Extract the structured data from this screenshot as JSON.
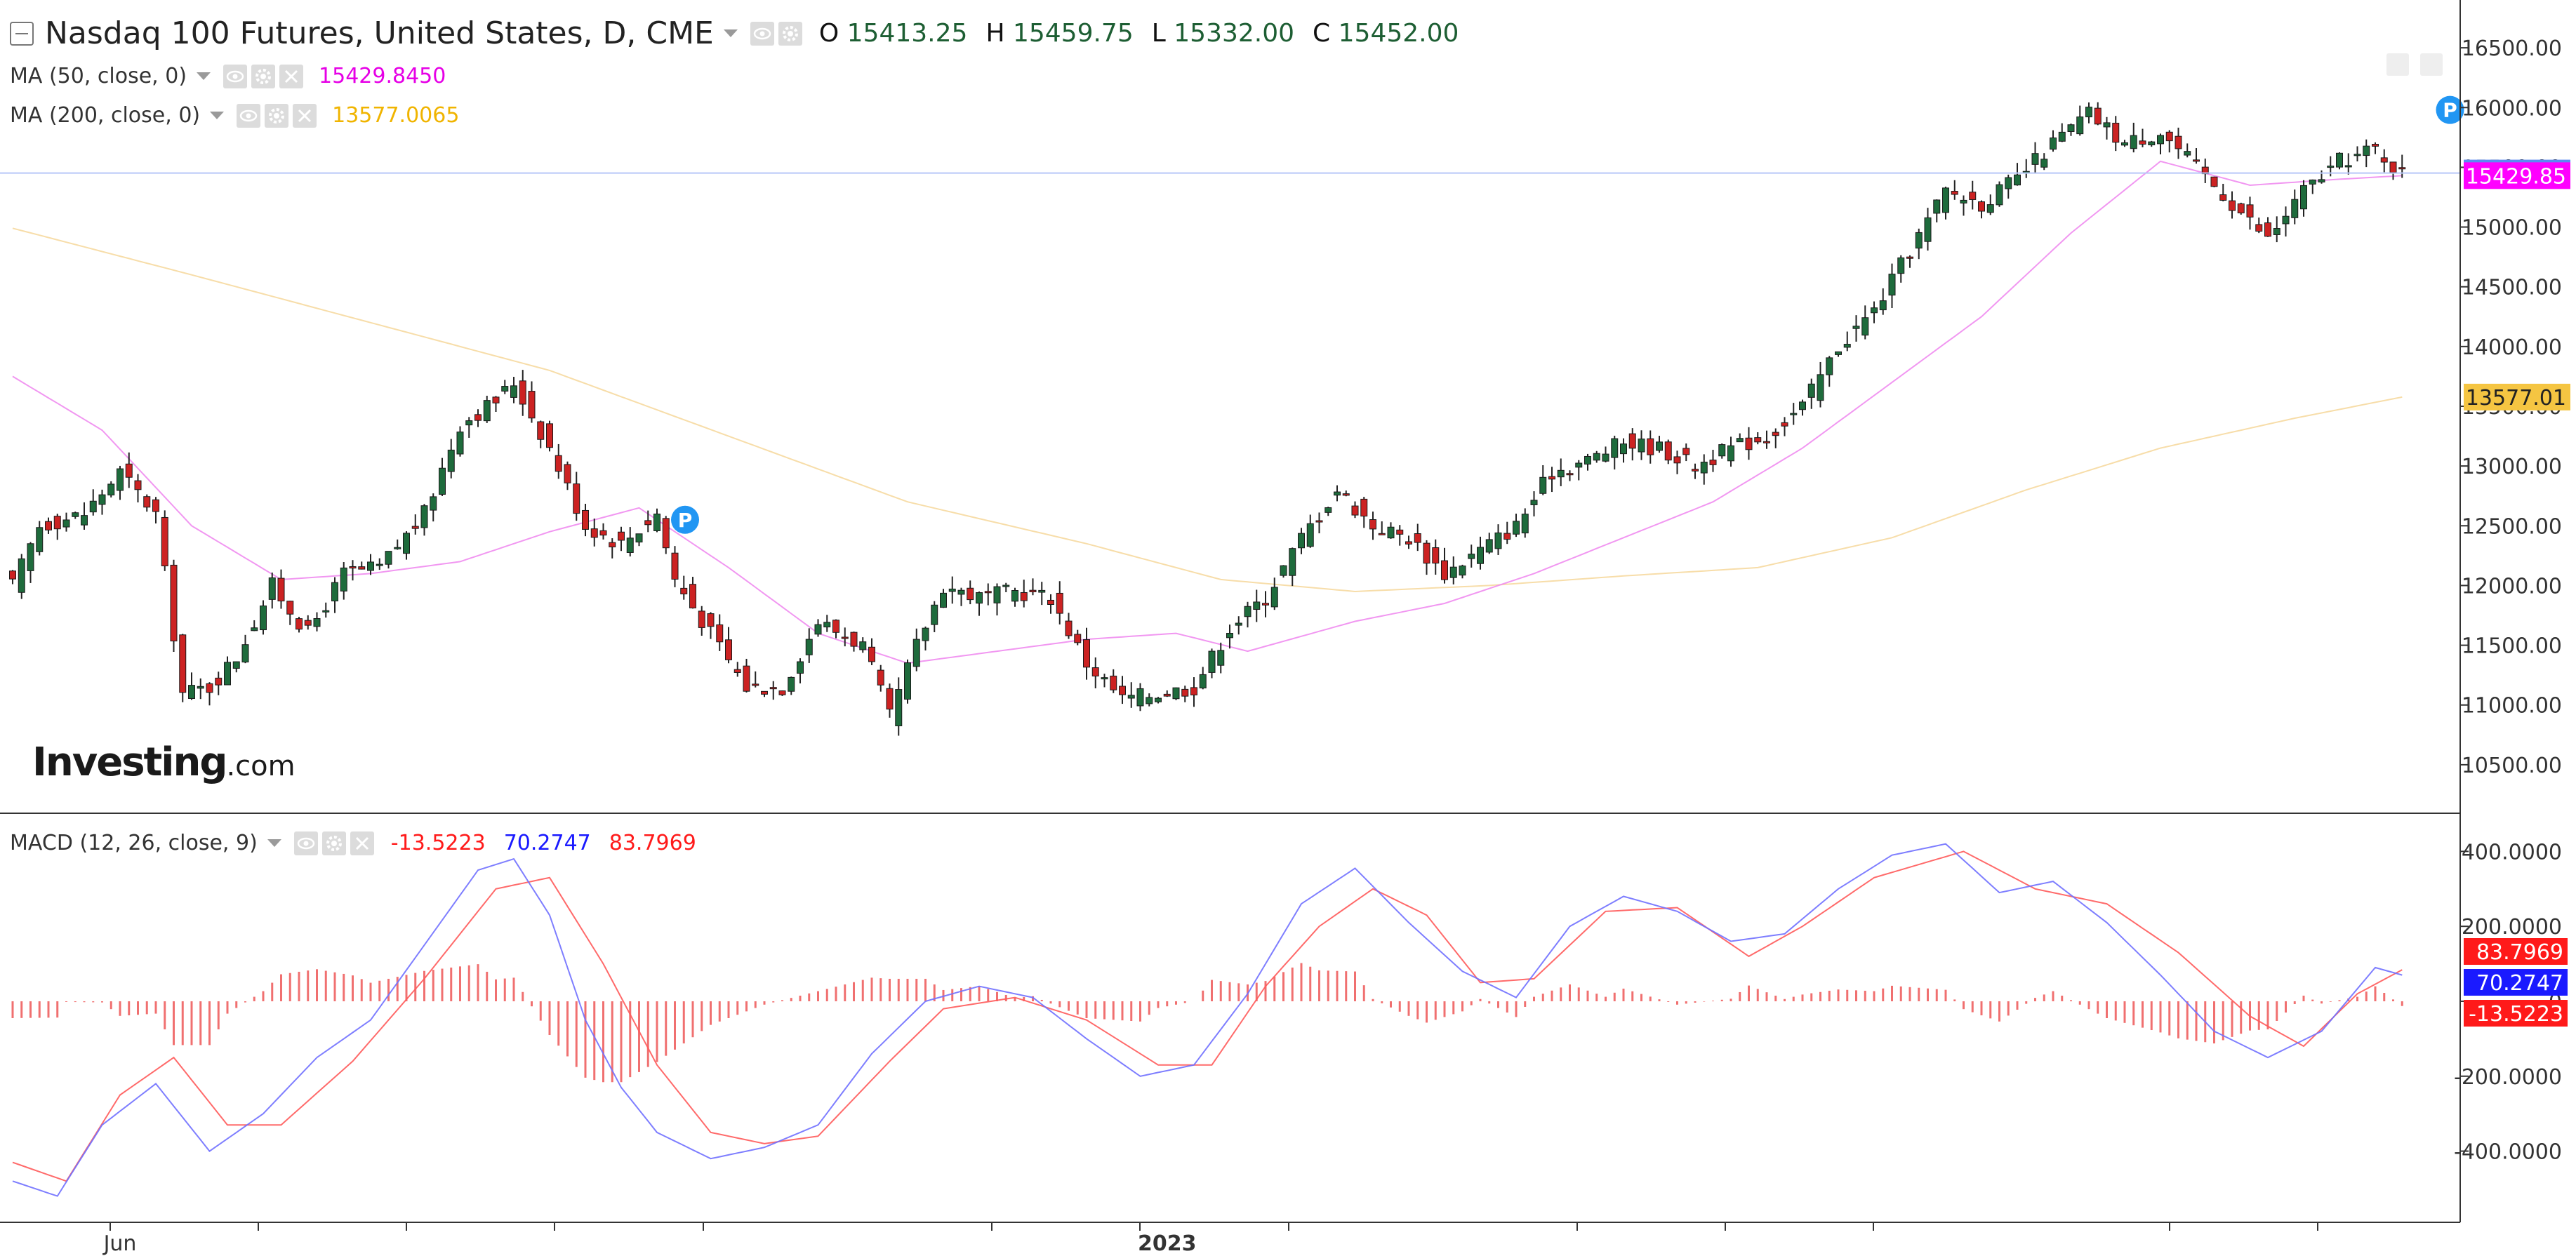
{
  "header": {
    "title": "Nasdaq 100 Futures, United States, D, CME",
    "ohlc": [
      {
        "key": "O",
        "value": "15413.25"
      },
      {
        "key": "H",
        "value": "15459.75"
      },
      {
        "key": "L",
        "value": "15332.00"
      },
      {
        "key": "C",
        "value": "15452.00"
      }
    ]
  },
  "indicators": {
    "ma50": {
      "label": "MA (50, close, 0)",
      "value": "15429.8450",
      "color": "#e600e6"
    },
    "ma200": {
      "label": "MA (200, close, 0)",
      "value": "13577.0065",
      "color": "#f0b400"
    },
    "macd": {
      "label": "MACD (12, 26, close, 9)",
      "hist": "-13.5223",
      "macd": "70.2747",
      "signal": "83.7969"
    }
  },
  "logo": {
    "brand": "Investing",
    "suffix": ".com"
  },
  "colors": {
    "up": "#1e6b3c",
    "down": "#cc2222",
    "ma50": "#e600e6",
    "ma200": "#f0b400",
    "macd": "#2222ff",
    "signal": "#ff2222",
    "last": "#5b8bf2",
    "badge": "#2196f3"
  },
  "chart_data": [
    {
      "type": "candlestick",
      "title": "Nasdaq 100 Futures, United States, D, CME",
      "ylim": [
        10100,
        16900
      ],
      "y_ticks": [
        "16500.00",
        "16000.00",
        "15500.00",
        "15000.00",
        "14500.00",
        "14000.00",
        "13500.00",
        "13000.00",
        "12500.00",
        "12000.00",
        "11500.00",
        "11000.00",
        "10500.00"
      ],
      "x_labels": [
        {
          "label": "Jun",
          "bar": 12
        },
        {
          "label": "2023",
          "bar": 129
        }
      ],
      "price_labels": [
        {
          "text": "15452.00",
          "value": 15452,
          "color": "#5b8bf2"
        },
        {
          "text": "15429.85",
          "value": 15429.85,
          "color": "#ff00ff"
        },
        {
          "text": "13577.01",
          "value": 13577.01,
          "color": "#f5c542"
        }
      ],
      "last_price": 15452,
      "markers": [
        {
          "label": "P",
          "bar": 72
        },
        {
          "label": "P",
          "bar": 270
        }
      ],
      "ohlc_keypoints": [
        [
          0,
          12000
        ],
        [
          3,
          12500
        ],
        [
          8,
          12600
        ],
        [
          12,
          12950
        ],
        [
          16,
          12600
        ],
        [
          19,
          11100
        ],
        [
          22,
          11150
        ],
        [
          25,
          11400
        ],
        [
          29,
          12000
        ],
        [
          33,
          11600
        ],
        [
          37,
          12100
        ],
        [
          41,
          12150
        ],
        [
          46,
          12600
        ],
        [
          50,
          13350
        ],
        [
          54,
          13550
        ],
        [
          56,
          13700
        ],
        [
          60,
          13150
        ],
        [
          64,
          12500
        ],
        [
          68,
          12350
        ],
        [
          72,
          12600
        ],
        [
          74,
          12050
        ],
        [
          78,
          11600
        ],
        [
          82,
          11150
        ],
        [
          86,
          11150
        ],
        [
          90,
          11700
        ],
        [
          95,
          11500
        ],
        [
          98,
          10900
        ],
        [
          101,
          11500
        ],
        [
          104,
          12000
        ],
        [
          108,
          11900
        ],
        [
          112,
          11950
        ],
        [
          116,
          11900
        ],
        [
          120,
          11350
        ],
        [
          124,
          11050
        ],
        [
          128,
          11100
        ],
        [
          132,
          11150
        ],
        [
          136,
          11650
        ],
        [
          140,
          11900
        ],
        [
          144,
          12400
        ],
        [
          148,
          12800
        ],
        [
          152,
          12500
        ],
        [
          156,
          12400
        ],
        [
          160,
          12100
        ],
        [
          164,
          12300
        ],
        [
          168,
          12500
        ],
        [
          172,
          12950
        ],
        [
          176,
          13050
        ],
        [
          180,
          13200
        ],
        [
          184,
          13150
        ],
        [
          188,
          13000
        ],
        [
          192,
          13150
        ],
        [
          196,
          13250
        ],
        [
          200,
          13500
        ],
        [
          204,
          14000
        ],
        [
          208,
          14300
        ],
        [
          212,
          14800
        ],
        [
          216,
          15300
        ],
        [
          220,
          15200
        ],
        [
          224,
          15400
        ],
        [
          228,
          15700
        ],
        [
          232,
          15950
        ],
        [
          236,
          15700
        ],
        [
          240,
          15800
        ],
        [
          244,
          15500
        ],
        [
          248,
          15200
        ],
        [
          252,
          14900
        ],
        [
          256,
          15300
        ],
        [
          260,
          15550
        ],
        [
          264,
          15650
        ],
        [
          267,
          15452
        ]
      ],
      "ma50_keypoints": [
        [
          0,
          13750
        ],
        [
          10,
          13300
        ],
        [
          20,
          12500
        ],
        [
          30,
          12050
        ],
        [
          40,
          12100
        ],
        [
          50,
          12200
        ],
        [
          60,
          12450
        ],
        [
          70,
          12650
        ],
        [
          80,
          12150
        ],
        [
          90,
          11600
        ],
        [
          100,
          11350
        ],
        [
          110,
          11450
        ],
        [
          120,
          11550
        ],
        [
          130,
          11600
        ],
        [
          138,
          11450
        ],
        [
          150,
          11700
        ],
        [
          160,
          11850
        ],
        [
          170,
          12100
        ],
        [
          180,
          12400
        ],
        [
          190,
          12700
        ],
        [
          200,
          13150
        ],
        [
          210,
          13700
        ],
        [
          220,
          14250
        ],
        [
          230,
          14950
        ],
        [
          240,
          15550
        ],
        [
          250,
          15350
        ],
        [
          260,
          15400
        ],
        [
          267,
          15430
        ]
      ],
      "ma200_keypoints": [
        [
          0,
          14990
        ],
        [
          20,
          14600
        ],
        [
          40,
          14200
        ],
        [
          60,
          13800
        ],
        [
          80,
          13250
        ],
        [
          100,
          12700
        ],
        [
          120,
          12350
        ],
        [
          135,
          12050
        ],
        [
          150,
          11950
        ],
        [
          165,
          12000
        ],
        [
          180,
          12080
        ],
        [
          195,
          12150
        ],
        [
          210,
          12400
        ],
        [
          225,
          12800
        ],
        [
          240,
          13150
        ],
        [
          255,
          13400
        ],
        [
          267,
          13577
        ]
      ]
    },
    {
      "type": "macd",
      "title": "MACD (12, 26, close, 9)",
      "ylim": [
        -590,
        500
      ],
      "y_ticks": [
        "400.0000",
        "200.0000",
        "0",
        "-200.0000",
        "-400.0000"
      ],
      "y_tick_values": [
        400,
        200,
        0,
        -200,
        -400
      ],
      "value_labels": [
        {
          "text": "83.7969",
          "value": 83.7969,
          "color": "#ff1a1a"
        },
        {
          "text": "70.2747",
          "value": 70.2747,
          "color": "#1a1aff"
        },
        {
          "text": "-13.5223",
          "value": -13.5223,
          "color": "#ff1a1a"
        }
      ],
      "macd_keypoints": [
        [
          0,
          -480
        ],
        [
          5,
          -520
        ],
        [
          10,
          -330
        ],
        [
          16,
          -220
        ],
        [
          22,
          -400
        ],
        [
          28,
          -300
        ],
        [
          34,
          -150
        ],
        [
          40,
          -50
        ],
        [
          46,
          150
        ],
        [
          52,
          350
        ],
        [
          56,
          380
        ],
        [
          60,
          230
        ],
        [
          64,
          -50
        ],
        [
          68,
          -230
        ],
        [
          72,
          -350
        ],
        [
          78,
          -420
        ],
        [
          84,
          -390
        ],
        [
          90,
          -330
        ],
        [
          96,
          -140
        ],
        [
          102,
          0
        ],
        [
          108,
          40
        ],
        [
          114,
          10
        ],
        [
          120,
          -100
        ],
        [
          126,
          -200
        ],
        [
          132,
          -170
        ],
        [
          138,
          20
        ],
        [
          144,
          260
        ],
        [
          150,
          355
        ],
        [
          156,
          210
        ],
        [
          162,
          80
        ],
        [
          168,
          10
        ],
        [
          174,
          200
        ],
        [
          180,
          280
        ],
        [
          186,
          240
        ],
        [
          192,
          160
        ],
        [
          198,
          180
        ],
        [
          204,
          300
        ],
        [
          210,
          390
        ],
        [
          216,
          420
        ],
        [
          222,
          290
        ],
        [
          228,
          320
        ],
        [
          234,
          210
        ],
        [
          240,
          70
        ],
        [
          246,
          -80
        ],
        [
          252,
          -150
        ],
        [
          258,
          -80
        ],
        [
          264,
          90
        ],
        [
          267,
          70
        ]
      ],
      "signal_keypoints": [
        [
          0,
          -430
        ],
        [
          6,
          -480
        ],
        [
          12,
          -250
        ],
        [
          18,
          -150
        ],
        [
          24,
          -330
        ],
        [
          30,
          -330
        ],
        [
          38,
          -160
        ],
        [
          46,
          60
        ],
        [
          54,
          300
        ],
        [
          60,
          330
        ],
        [
          66,
          100
        ],
        [
          72,
          -170
        ],
        [
          78,
          -350
        ],
        [
          84,
          -380
        ],
        [
          90,
          -360
        ],
        [
          98,
          -160
        ],
        [
          104,
          -20
        ],
        [
          112,
          10
        ],
        [
          120,
          -50
        ],
        [
          128,
          -170
        ],
        [
          134,
          -170
        ],
        [
          140,
          40
        ],
        [
          146,
          200
        ],
        [
          152,
          300
        ],
        [
          158,
          230
        ],
        [
          164,
          50
        ],
        [
          170,
          60
        ],
        [
          178,
          240
        ],
        [
          186,
          250
        ],
        [
          194,
          120
        ],
        [
          200,
          200
        ],
        [
          208,
          330
        ],
        [
          218,
          400
        ],
        [
          226,
          300
        ],
        [
          234,
          260
        ],
        [
          242,
          130
        ],
        [
          250,
          -40
        ],
        [
          256,
          -120
        ],
        [
          262,
          20
        ],
        [
          267,
          84
        ]
      ]
    }
  ]
}
